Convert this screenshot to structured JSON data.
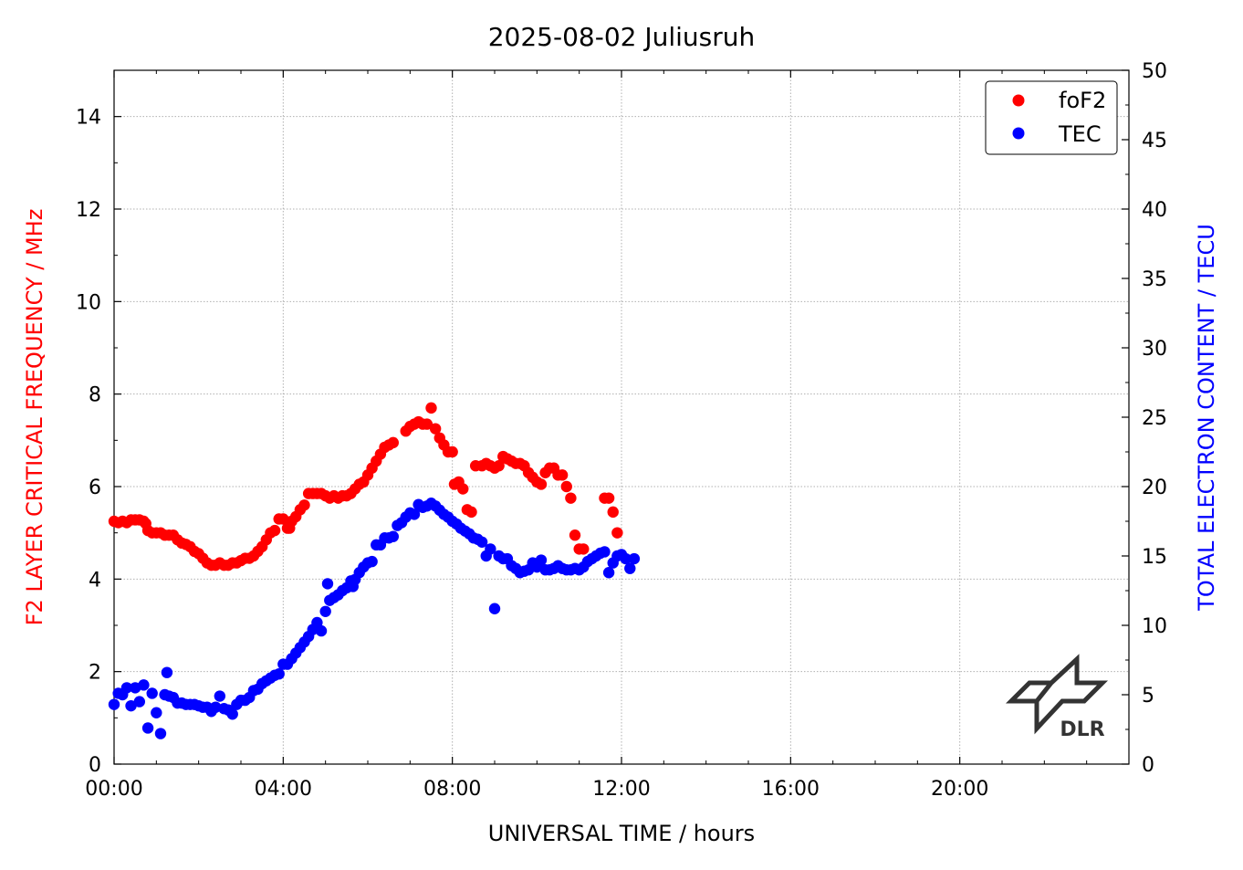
{
  "chart_data": {
    "type": "scatter",
    "title": "2025-08-02 Juliusruh",
    "xlabel": "UNIVERSAL TIME / hours",
    "ylabel_left": "F2 LAYER CRITICAL FREQUENCY / MHz",
    "ylabel_right": "TOTAL ELECTRON CONTENT / TECU",
    "xlim": [
      0,
      24
    ],
    "ylim_left": [
      0,
      15
    ],
    "ylim_right": [
      0,
      50
    ],
    "x_ticks": [
      0,
      4,
      8,
      12,
      16,
      20
    ],
    "x_tick_labels": [
      "00:00",
      "04:00",
      "08:00",
      "12:00",
      "16:00",
      "20:00"
    ],
    "y_left_ticks": [
      0,
      2,
      4,
      6,
      8,
      10,
      12,
      14
    ],
    "y_left_tick_labels": [
      "0",
      "2",
      "4",
      "6",
      "8",
      "10",
      "12",
      "14"
    ],
    "y_right_ticks": [
      0,
      5,
      10,
      15,
      20,
      25,
      30,
      35,
      40,
      45,
      50
    ],
    "y_right_tick_labels": [
      "0",
      "5",
      "10",
      "15",
      "20",
      "25",
      "30",
      "35",
      "40",
      "45",
      "50"
    ],
    "grid": true,
    "legend_position": "top-right",
    "colors": {
      "fof2": "#ff0000",
      "tec": "#0000ff"
    },
    "series": [
      {
        "name": "foF2",
        "axis": "left",
        "color": "#ff0000",
        "points": [
          [
            0.0,
            5.25
          ],
          [
            0.1,
            5.22
          ],
          [
            0.2,
            5.25
          ],
          [
            0.3,
            5.22
          ],
          [
            0.4,
            5.28
          ],
          [
            0.5,
            5.28
          ],
          [
            0.6,
            5.28
          ],
          [
            0.7,
            5.25
          ],
          [
            0.75,
            5.2
          ],
          [
            0.8,
            5.05
          ],
          [
            0.9,
            5.0
          ],
          [
            1.0,
            5.0
          ],
          [
            1.1,
            5.0
          ],
          [
            1.2,
            4.95
          ],
          [
            1.3,
            4.95
          ],
          [
            1.4,
            4.95
          ],
          [
            1.5,
            4.85
          ],
          [
            1.6,
            4.78
          ],
          [
            1.7,
            4.75
          ],
          [
            1.8,
            4.7
          ],
          [
            1.9,
            4.6
          ],
          [
            2.0,
            4.55
          ],
          [
            2.1,
            4.45
          ],
          [
            2.2,
            4.35
          ],
          [
            2.3,
            4.3
          ],
          [
            2.4,
            4.3
          ],
          [
            2.5,
            4.35
          ],
          [
            2.6,
            4.3
          ],
          [
            2.7,
            4.3
          ],
          [
            2.8,
            4.35
          ],
          [
            2.9,
            4.35
          ],
          [
            3.0,
            4.4
          ],
          [
            3.1,
            4.45
          ],
          [
            3.2,
            4.45
          ],
          [
            3.3,
            4.5
          ],
          [
            3.4,
            4.6
          ],
          [
            3.5,
            4.7
          ],
          [
            3.6,
            4.85
          ],
          [
            3.7,
            5.0
          ],
          [
            3.8,
            5.05
          ],
          [
            3.9,
            5.3
          ],
          [
            4.0,
            5.3
          ],
          [
            4.1,
            5.1
          ],
          [
            4.15,
            5.1
          ],
          [
            4.2,
            5.25
          ],
          [
            4.3,
            5.35
          ],
          [
            4.4,
            5.5
          ],
          [
            4.5,
            5.6
          ],
          [
            4.6,
            5.85
          ],
          [
            4.7,
            5.85
          ],
          [
            4.8,
            5.85
          ],
          [
            4.9,
            5.85
          ],
          [
            5.0,
            5.8
          ],
          [
            5.1,
            5.75
          ],
          [
            5.2,
            5.8
          ],
          [
            5.3,
            5.75
          ],
          [
            5.4,
            5.8
          ],
          [
            5.5,
            5.8
          ],
          [
            5.6,
            5.85
          ],
          [
            5.7,
            5.95
          ],
          [
            5.8,
            6.05
          ],
          [
            5.9,
            6.1
          ],
          [
            6.0,
            6.25
          ],
          [
            6.1,
            6.4
          ],
          [
            6.2,
            6.55
          ],
          [
            6.3,
            6.7
          ],
          [
            6.4,
            6.85
          ],
          [
            6.5,
            6.9
          ],
          [
            6.6,
            6.95
          ],
          [
            6.9,
            7.2
          ],
          [
            7.0,
            7.3
          ],
          [
            7.1,
            7.35
          ],
          [
            7.2,
            7.4
          ],
          [
            7.3,
            7.35
          ],
          [
            7.4,
            7.35
          ],
          [
            7.5,
            7.7
          ],
          [
            7.6,
            7.25
          ],
          [
            7.7,
            7.05
          ],
          [
            7.8,
            6.9
          ],
          [
            7.9,
            6.75
          ],
          [
            8.0,
            6.75
          ],
          [
            8.05,
            6.05
          ],
          [
            8.15,
            6.1
          ],
          [
            8.25,
            5.95
          ],
          [
            8.35,
            5.5
          ],
          [
            8.45,
            5.45
          ],
          [
            8.55,
            6.45
          ],
          [
            8.7,
            6.45
          ],
          [
            8.8,
            6.5
          ],
          [
            8.9,
            6.45
          ],
          [
            9.0,
            6.4
          ],
          [
            9.1,
            6.45
          ],
          [
            9.2,
            6.65
          ],
          [
            9.3,
            6.6
          ],
          [
            9.4,
            6.55
          ],
          [
            9.5,
            6.5
          ],
          [
            9.6,
            6.5
          ],
          [
            9.7,
            6.45
          ],
          [
            9.8,
            6.3
          ],
          [
            9.9,
            6.2
          ],
          [
            10.0,
            6.1
          ],
          [
            10.1,
            6.05
          ],
          [
            10.2,
            6.3
          ],
          [
            10.3,
            6.4
          ],
          [
            10.4,
            6.4
          ],
          [
            10.5,
            6.25
          ],
          [
            10.6,
            6.25
          ],
          [
            10.7,
            6.0
          ],
          [
            10.8,
            5.75
          ],
          [
            10.9,
            4.95
          ],
          [
            11.0,
            4.65
          ],
          [
            11.1,
            4.65
          ],
          [
            11.6,
            5.75
          ],
          [
            11.7,
            5.75
          ],
          [
            11.8,
            5.45
          ],
          [
            11.9,
            5.0
          ]
        ]
      },
      {
        "name": "TEC",
        "axis": "right",
        "color": "#0000ff",
        "points": [
          [
            0.0,
            4.3
          ],
          [
            0.1,
            5.1
          ],
          [
            0.2,
            5.0
          ],
          [
            0.3,
            5.5
          ],
          [
            0.4,
            4.2
          ],
          [
            0.5,
            5.5
          ],
          [
            0.6,
            4.5
          ],
          [
            0.7,
            5.7
          ],
          [
            0.8,
            2.6
          ],
          [
            0.9,
            5.1
          ],
          [
            1.0,
            3.7
          ],
          [
            1.1,
            2.2
          ],
          [
            1.2,
            5.0
          ],
          [
            1.25,
            6.6
          ],
          [
            1.3,
            4.9
          ],
          [
            1.4,
            4.8
          ],
          [
            1.5,
            4.4
          ],
          [
            1.6,
            4.4
          ],
          [
            1.7,
            4.3
          ],
          [
            1.8,
            4.3
          ],
          [
            1.9,
            4.3
          ],
          [
            2.0,
            4.2
          ],
          [
            2.1,
            4.1
          ],
          [
            2.2,
            4.1
          ],
          [
            2.3,
            3.8
          ],
          [
            2.4,
            4.1
          ],
          [
            2.5,
            4.9
          ],
          [
            2.6,
            4.0
          ],
          [
            2.7,
            3.9
          ],
          [
            2.8,
            3.6
          ],
          [
            2.9,
            4.3
          ],
          [
            3.0,
            4.6
          ],
          [
            3.1,
            4.6
          ],
          [
            3.2,
            4.8
          ],
          [
            3.3,
            5.3
          ],
          [
            3.4,
            5.4
          ],
          [
            3.5,
            5.8
          ],
          [
            3.6,
            6.0
          ],
          [
            3.7,
            6.2
          ],
          [
            3.8,
            6.4
          ],
          [
            3.9,
            6.5
          ],
          [
            4.0,
            7.2
          ],
          [
            4.1,
            7.2
          ],
          [
            4.2,
            7.6
          ],
          [
            4.3,
            8.0
          ],
          [
            4.4,
            8.4
          ],
          [
            4.5,
            8.8
          ],
          [
            4.6,
            9.2
          ],
          [
            4.7,
            9.7
          ],
          [
            4.8,
            10.2
          ],
          [
            4.9,
            9.6
          ],
          [
            5.0,
            11.0
          ],
          [
            5.05,
            13.0
          ],
          [
            5.1,
            11.8
          ],
          [
            5.2,
            12.0
          ],
          [
            5.3,
            12.2
          ],
          [
            5.4,
            12.5
          ],
          [
            5.5,
            12.7
          ],
          [
            5.6,
            13.2
          ],
          [
            5.65,
            12.8
          ],
          [
            5.7,
            13.3
          ],
          [
            5.8,
            13.8
          ],
          [
            5.9,
            14.2
          ],
          [
            6.0,
            14.5
          ],
          [
            6.1,
            14.6
          ],
          [
            6.2,
            15.8
          ],
          [
            6.3,
            15.8
          ],
          [
            6.4,
            16.3
          ],
          [
            6.5,
            16.3
          ],
          [
            6.6,
            16.4
          ],
          [
            6.7,
            17.2
          ],
          [
            6.8,
            17.4
          ],
          [
            6.9,
            17.8
          ],
          [
            7.0,
            18.1
          ],
          [
            7.1,
            18.0
          ],
          [
            7.2,
            18.7
          ],
          [
            7.3,
            18.5
          ],
          [
            7.4,
            18.6
          ],
          [
            7.5,
            18.8
          ],
          [
            7.6,
            18.6
          ],
          [
            7.7,
            18.3
          ],
          [
            7.8,
            18.0
          ],
          [
            7.9,
            17.8
          ],
          [
            8.0,
            17.5
          ],
          [
            8.1,
            17.3
          ],
          [
            8.2,
            17.0
          ],
          [
            8.3,
            16.8
          ],
          [
            8.4,
            16.6
          ],
          [
            8.5,
            16.3
          ],
          [
            8.6,
            16.2
          ],
          [
            8.7,
            16.0
          ],
          [
            8.8,
            15.0
          ],
          [
            8.9,
            15.5
          ],
          [
            9.0,
            11.2
          ],
          [
            9.1,
            15.0
          ],
          [
            9.2,
            14.8
          ],
          [
            9.3,
            14.8
          ],
          [
            9.4,
            14.3
          ],
          [
            9.5,
            14.1
          ],
          [
            9.6,
            13.8
          ],
          [
            9.7,
            13.9
          ],
          [
            9.8,
            14.0
          ],
          [
            9.9,
            14.5
          ],
          [
            10.0,
            14.2
          ],
          [
            10.1,
            14.7
          ],
          [
            10.2,
            14.0
          ],
          [
            10.3,
            14.0
          ],
          [
            10.4,
            14.1
          ],
          [
            10.5,
            14.3
          ],
          [
            10.6,
            14.1
          ],
          [
            10.7,
            14.0
          ],
          [
            10.8,
            14.0
          ],
          [
            10.9,
            14.1
          ],
          [
            11.0,
            14.0
          ],
          [
            11.1,
            14.2
          ],
          [
            11.2,
            14.6
          ],
          [
            11.3,
            14.8
          ],
          [
            11.4,
            15.0
          ],
          [
            11.5,
            15.2
          ],
          [
            11.6,
            15.3
          ],
          [
            11.7,
            13.8
          ],
          [
            11.8,
            14.5
          ],
          [
            11.9,
            15.0
          ],
          [
            12.0,
            15.1
          ],
          [
            12.1,
            14.8
          ],
          [
            12.2,
            14.1
          ],
          [
            12.3,
            14.8
          ]
        ]
      }
    ],
    "logo": {
      "text": "DLR"
    }
  }
}
